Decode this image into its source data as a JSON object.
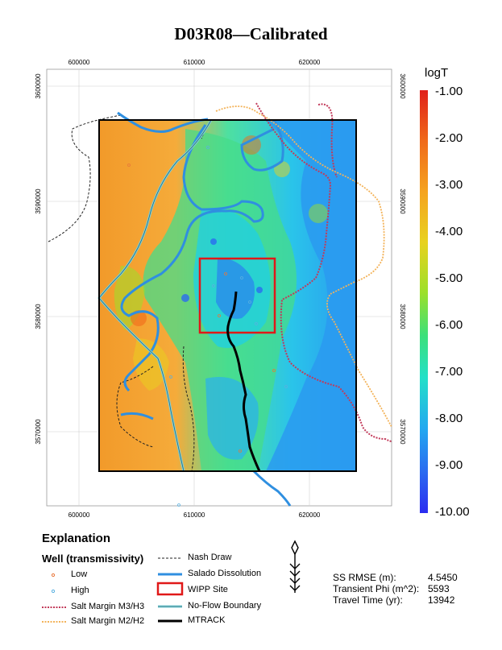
{
  "title": "D03R08—Calibrated",
  "map": {
    "x_ticks": [
      "600000",
      "610000",
      "620000"
    ],
    "y_ticks": [
      "3600000",
      "3590000",
      "3580000",
      "3570000"
    ],
    "colorbar": {
      "title": "logT",
      "labels": [
        "-1.00",
        "-2.00",
        "-3.00",
        "-4.00",
        "-5.00",
        "-6.00",
        "-7.00",
        "-8.00",
        "-9.00",
        "-10.00"
      ],
      "min": -10.0,
      "max": -1.0
    }
  },
  "legend": {
    "heading": "Explanation",
    "well_heading": "Well (transmissivity)",
    "low": "Low",
    "high": "High",
    "salt_m3": "Salt Margin M3/H3",
    "salt_m2": "Salt Margin M2/H2",
    "nash_draw": "Nash Draw",
    "salado": "Salado Dissolution",
    "wipp": "WIPP Site",
    "no_flow": "No-Flow Boundary",
    "mtrack": "MTRACK",
    "colors": {
      "low": "#e8763a",
      "high": "#5ab0e0",
      "salt_m3": "#c23a5a",
      "salt_m2": "#f3b35a",
      "nash": "#222222",
      "salado": "#2f8fe0",
      "wipp": "#e01818",
      "no_flow": "#7fd0d8",
      "mtrack": "#000000"
    }
  },
  "stats": {
    "rmse_label": "SS RMSE (m):",
    "rmse_value": "4.5450",
    "phi_label": "Transient Phi (m^2):",
    "phi_value": "5593",
    "travel_label": "Travel Time (yr):",
    "travel_value": "13942"
  }
}
